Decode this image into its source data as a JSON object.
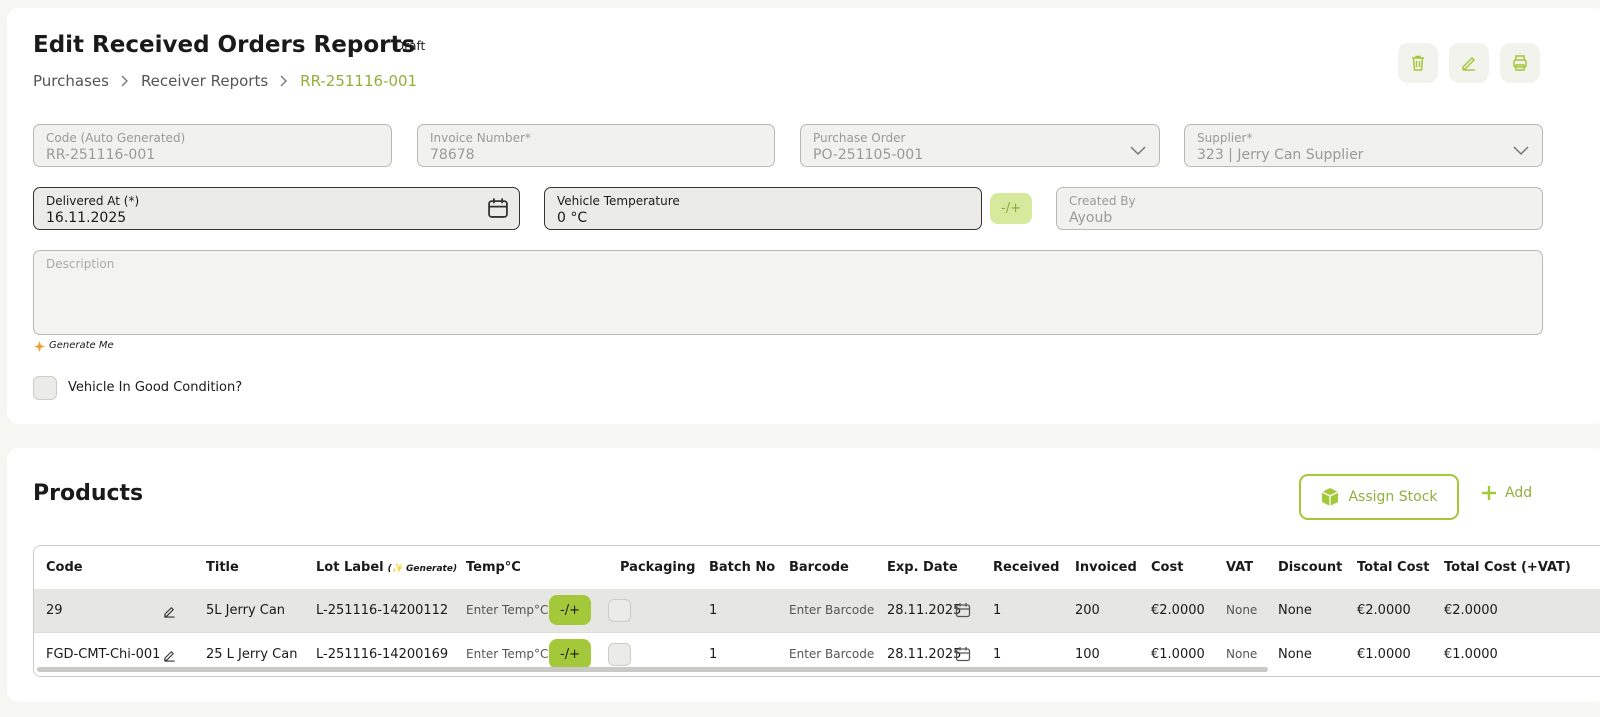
{
  "header": {
    "title": "Edit Received Orders Reports",
    "status": "Draft",
    "breadcrumbs": [
      "Purchases",
      "Receiver Reports",
      "RR-251116-001"
    ]
  },
  "form": {
    "fields": [
      {
        "label": "Code (Auto Generated)",
        "value": "RR-251116-001"
      },
      {
        "label": "Invoice Number*",
        "value": "78678"
      },
      {
        "label": "Purchase Order",
        "value": "PO-251105-001"
      },
      {
        "label": "Supplier*",
        "value": "323 | Jerry Can Supplier"
      },
      {
        "label": "Delivered At (*)",
        "value": "16.11.2025"
      },
      {
        "label": "Vehicle Temperature",
        "value": "0 °C"
      },
      {
        "label": "Created By",
        "value": "Ayoub"
      }
    ],
    "temp_toggle": "-/+",
    "description_label": "Description",
    "generate": "Generate Me",
    "checkbox_label": "Vehicle In Good Condition?"
  },
  "products": {
    "title": "Products",
    "assign_button": "Assign Stock",
    "add_button": "Add",
    "columns": [
      "Code",
      "Title",
      "Lot Label",
      "Temp°C",
      "Packaging",
      "Batch No",
      "Barcode",
      "Exp. Date",
      "Received",
      "Invoiced",
      "Cost",
      "VAT",
      "Discount",
      "Total Cost",
      "Total Cost (+VAT)"
    ],
    "lot_hint": "(✨ Generate)",
    "rows": [
      {
        "code": "29",
        "title": "5L Jerry Can",
        "lot": "L-251116-14200112",
        "temp_placeholder": "Enter Temp°C",
        "temp_toggle": "-/+",
        "batch": 1,
        "barcode_placeholder": "Enter Barcode",
        "exp_date": "28.11.2025",
        "received": 1,
        "invoiced": 200,
        "cost": "€2.0000",
        "vat": "None",
        "discount": "None",
        "total_cost": "€2.0000",
        "total_cost_vat": "€2.0000"
      },
      {
        "code": "FGD-CMT-Chi-001",
        "title": "25 L Jerry Can",
        "lot": "L-251116-14200169",
        "temp_placeholder": "Enter Temp°C",
        "temp_toggle": "-/+",
        "batch": 1,
        "barcode_placeholder": "Enter Barcode",
        "exp_date": "28.11.2025",
        "received": 1,
        "invoiced": 100,
        "cost": "€1.0000",
        "vat": "None",
        "discount": "None",
        "total_cost": "€1.0000",
        "total_cost_vat": "€1.0000"
      }
    ]
  }
}
